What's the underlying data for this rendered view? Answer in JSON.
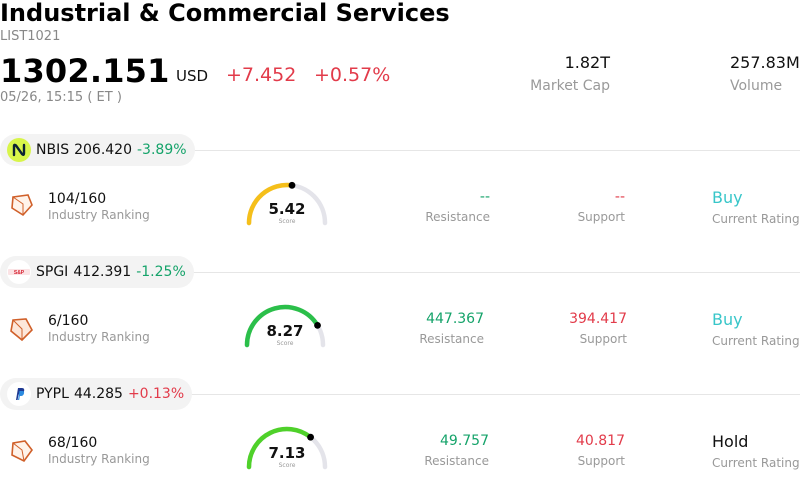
{
  "header": {
    "title": "Industrial & Commercial Services",
    "code": "LIST1021",
    "price": "1302.151",
    "currency": "USD",
    "change": "+7.452",
    "change_pct": "+0.57%",
    "time": "05/26, 15:15  ( ET )",
    "market_cap": {
      "value": "1.82T",
      "label": "Market Cap"
    },
    "volume": {
      "value": "257.83M",
      "label": "Volume"
    }
  },
  "colors": {
    "up": "#e23b4a",
    "down": "#15a36a",
    "buy": "#38c6c9"
  },
  "stocks": [
    {
      "symbol": "NBIS",
      "price": "206.420",
      "change": "-3.89%",
      "direction": "down",
      "logo": "nebius-logo",
      "ranking": {
        "value": "104/160",
        "label": "Industry Ranking"
      },
      "score": {
        "value": "5.42",
        "label": "Score",
        "fraction": 0.542,
        "color": "#f5bf1a"
      },
      "resistance": {
        "value": "--",
        "label": "Resistance"
      },
      "support": {
        "value": "--",
        "label": "Support"
      },
      "rating": {
        "value": "Buy",
        "label": "Current Rating"
      }
    },
    {
      "symbol": "SPGI",
      "price": "412.391",
      "change": "-1.25%",
      "direction": "down",
      "logo": "sp-global-logo",
      "ranking": {
        "value": "6/160",
        "label": "Industry Ranking"
      },
      "score": {
        "value": "8.27",
        "label": "Score",
        "fraction": 0.827,
        "color": "#2bbf4a"
      },
      "resistance": {
        "value": "447.367",
        "label": "Resistance"
      },
      "support": {
        "value": "394.417",
        "label": "Support"
      },
      "rating": {
        "value": "Buy",
        "label": "Current Rating"
      }
    },
    {
      "symbol": "PYPL",
      "price": "44.285",
      "change": "+0.13%",
      "direction": "up",
      "logo": "paypal-logo",
      "ranking": {
        "value": "68/160",
        "label": "Industry Ranking"
      },
      "score": {
        "value": "7.13",
        "label": "Score",
        "fraction": 0.713,
        "color": "#4fd12a"
      },
      "resistance": {
        "value": "49.757",
        "label": "Resistance"
      },
      "support": {
        "value": "40.817",
        "label": "Support"
      },
      "rating": {
        "value": "Hold",
        "label": "Current Rating"
      }
    }
  ]
}
